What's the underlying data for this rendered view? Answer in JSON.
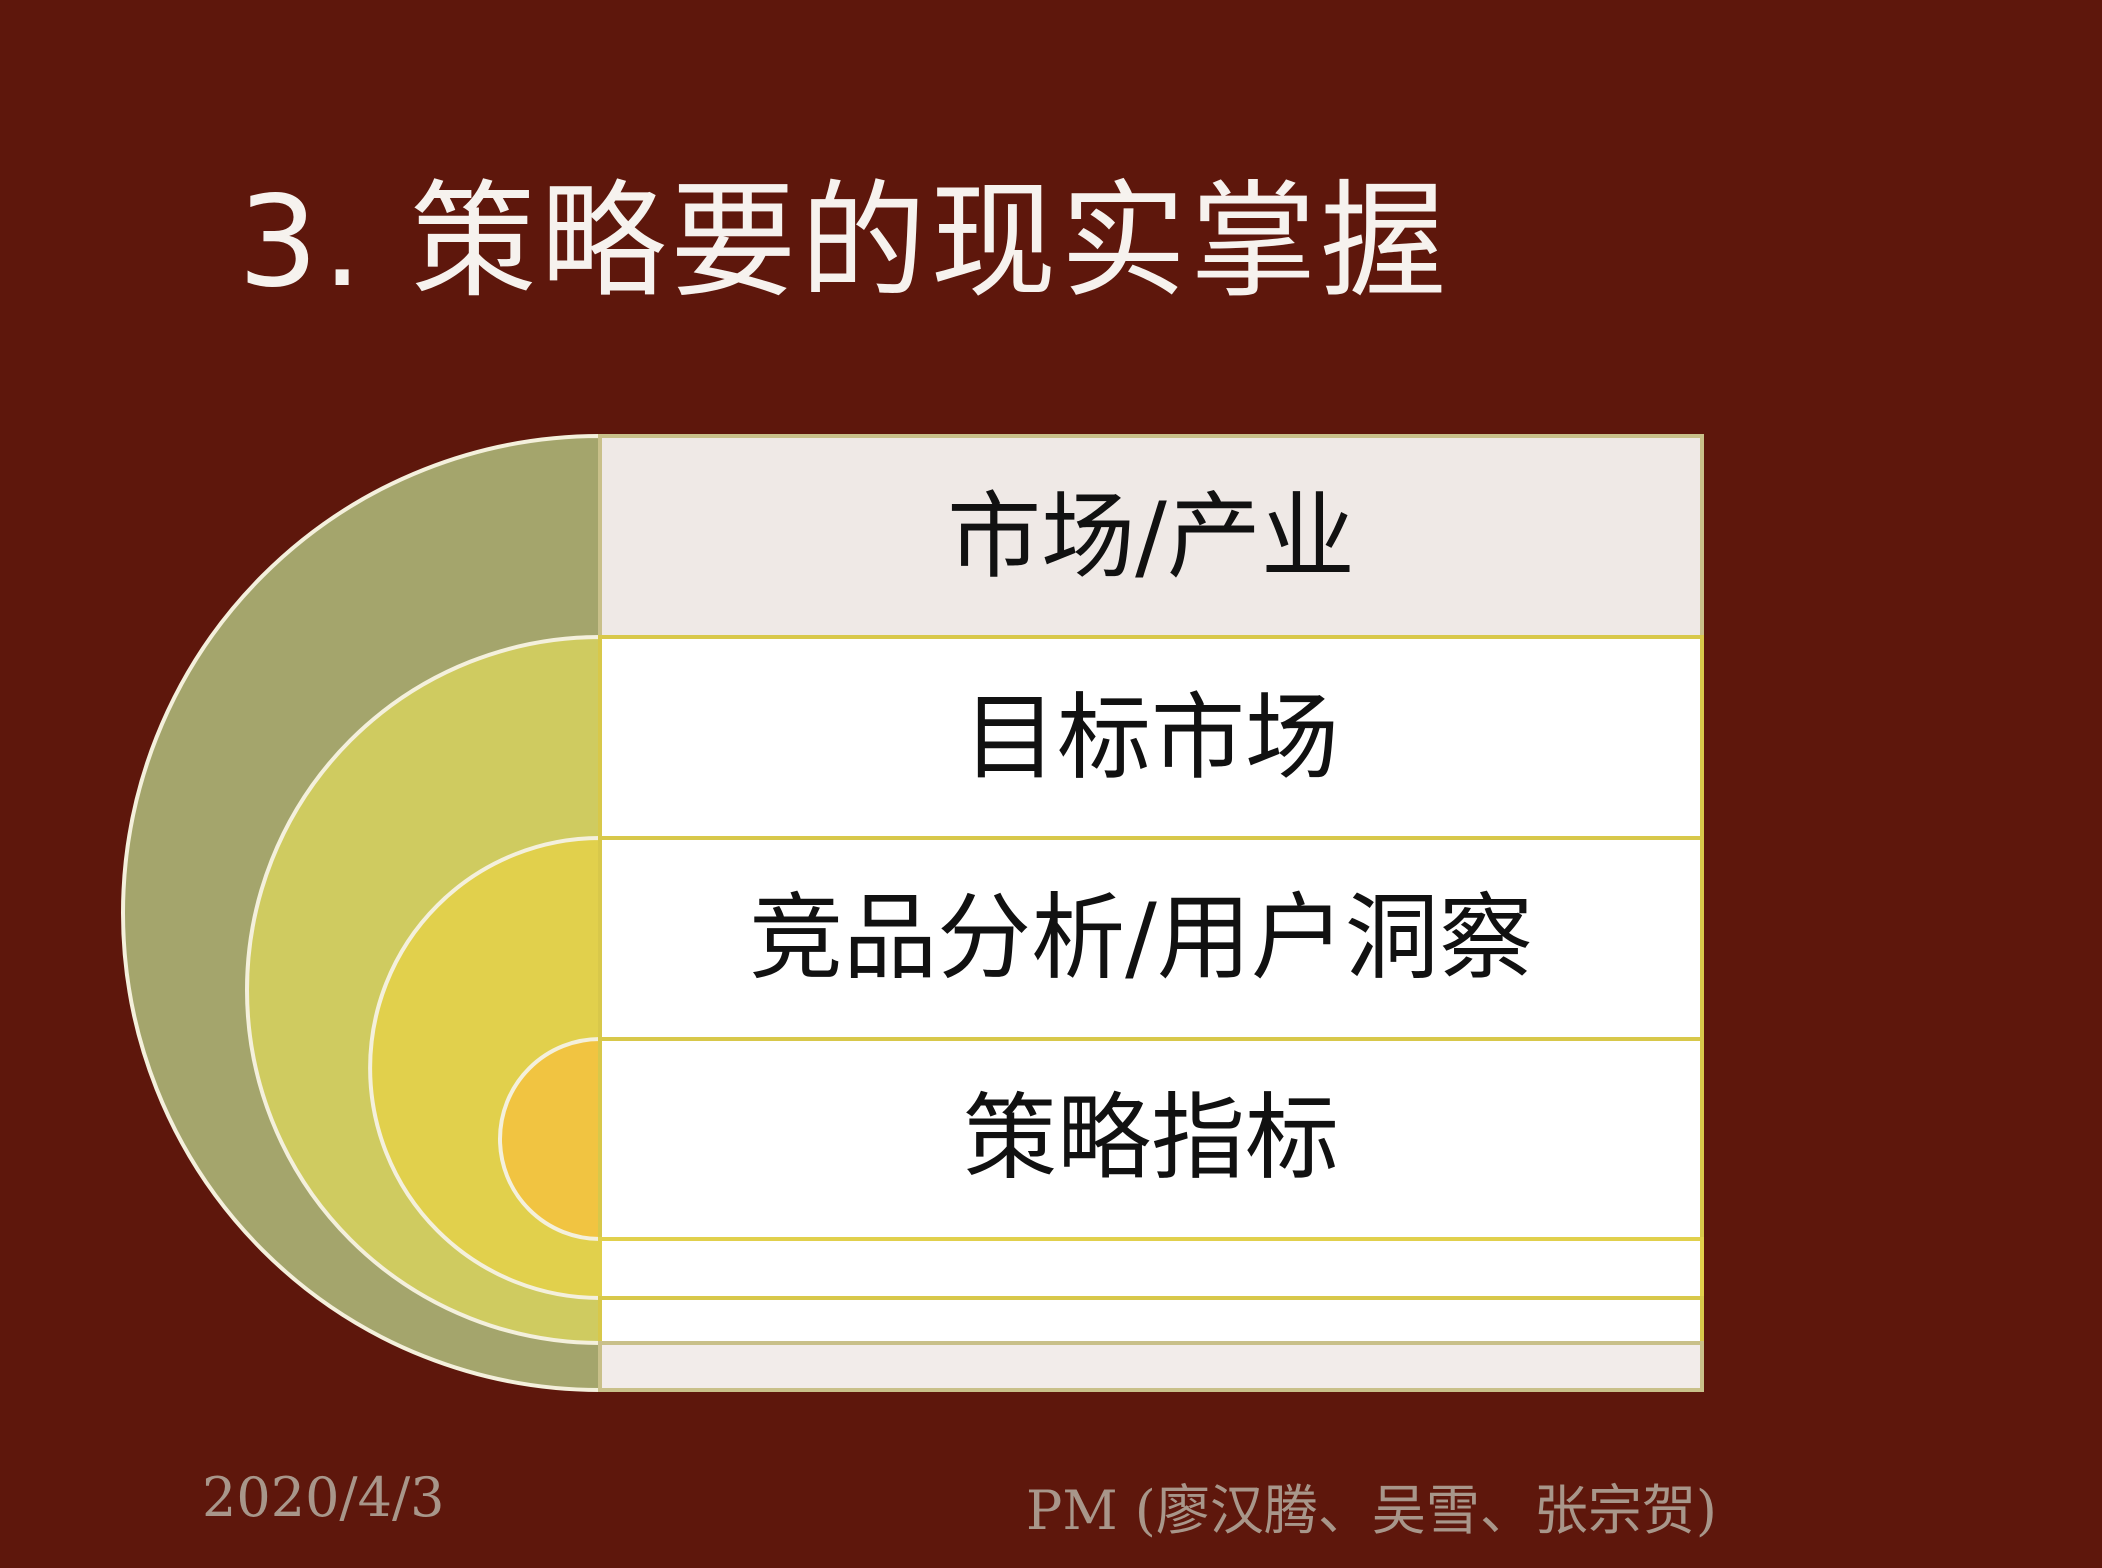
{
  "slide": {
    "title": "3. 策略要的现实掌握",
    "levels": [
      {
        "label": "市场/产业",
        "color": "#a4a56c",
        "row_color": "#efe9e6"
      },
      {
        "label": "目标市场",
        "color": "#cfcb60",
        "row_color": "#ffffff"
      },
      {
        "label": "竞品分析/用户洞察",
        "color": "#e1d04c",
        "row_color": "#ffffff"
      },
      {
        "label": "策略指标",
        "color": "#f1c441",
        "row_color": "#ffffff"
      }
    ],
    "footer": {
      "date": "2020/4/3",
      "author": "PM (廖汉腾、吴雪、张宗贺)"
    }
  },
  "colors": {
    "background": "#5e170c",
    "title_text": "#f6f2ee",
    "footer_text": "#a8968a",
    "row_border": "#d8c84a"
  }
}
